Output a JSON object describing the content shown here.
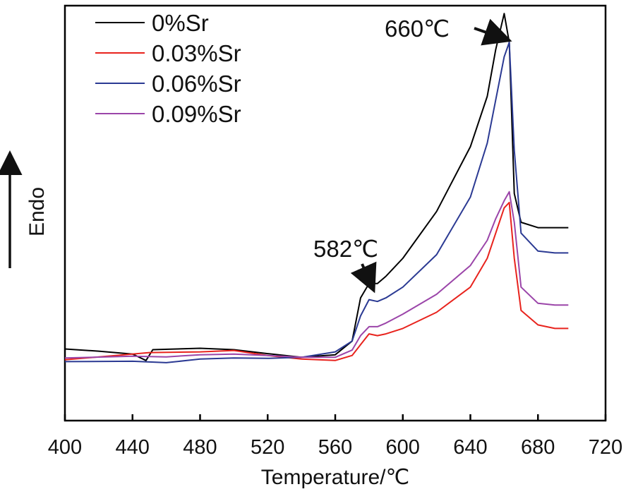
{
  "chart_data": {
    "type": "line",
    "title": "",
    "xlabel": "Temperature/℃",
    "ylabel": "Endo",
    "xlim": [
      400,
      720
    ],
    "ylim": [
      0,
      100
    ],
    "x_ticks": [
      "400",
      "440",
      "480",
      "520",
      "560",
      "600",
      "640",
      "680",
      "720"
    ],
    "y_ticks_shown": false,
    "legend_position": "top-left",
    "series": [
      {
        "name": "0%Sr",
        "color": "#000000",
        "x": [
          400,
          420,
          440,
          448,
          452,
          480,
          500,
          520,
          540,
          560,
          570,
          575,
          580,
          585,
          590,
          600,
          620,
          640,
          650,
          655,
          660,
          663,
          666,
          670,
          680,
          690,
          698
        ],
        "y": [
          14.8,
          14.2,
          13.4,
          11.6,
          14.6,
          15.0,
          14.6,
          13.5,
          12.5,
          13.2,
          17,
          29,
          33,
          33,
          35,
          40,
          53,
          71,
          85,
          98,
          108,
          100,
          58,
          50,
          48.5,
          48.5,
          48.5
        ]
      },
      {
        "name": "0.03%Sr",
        "color": "#e8231d",
        "x": [
          400,
          430,
          450,
          480,
          500,
          520,
          540,
          560,
          570,
          575,
          580,
          585,
          590,
          600,
          620,
          640,
          650,
          655,
          660,
          663,
          666,
          670,
          680,
          690,
          698
        ],
        "y": [
          11.8,
          13.0,
          13.8,
          14.0,
          14.4,
          13.0,
          12.0,
          11.6,
          13.0,
          16,
          19,
          18.5,
          19,
          20.5,
          25,
          32,
          40,
          47,
          54,
          55.5,
          40,
          25.5,
          21.5,
          20.5,
          20.5
        ]
      },
      {
        "name": "0.06%Sr",
        "color": "#2b3a93",
        "x": [
          400,
          440,
          460,
          480,
          500,
          520,
          540,
          560,
          570,
          575,
          580,
          585,
          590,
          600,
          620,
          640,
          650,
          655,
          660,
          663,
          666,
          670,
          680,
          690,
          698
        ],
        "y": [
          11.3,
          11.4,
          11.0,
          12.0,
          12.3,
          12.2,
          12.5,
          14.0,
          17,
          24,
          28.5,
          28,
          29,
          32,
          41,
          57,
          72,
          84,
          96,
          100,
          70,
          47,
          42,
          41.5,
          41.5
        ]
      },
      {
        "name": "0.09%Sr",
        "color": "#9b45a9",
        "x": [
          400,
          440,
          460,
          480,
          500,
          520,
          540,
          560,
          570,
          575,
          580,
          585,
          590,
          600,
          620,
          640,
          650,
          655,
          660,
          663,
          666,
          670,
          680,
          690,
          698
        ],
        "y": [
          12.3,
          12.8,
          12.6,
          13.2,
          13.4,
          13.0,
          12.5,
          12.5,
          14.5,
          18.5,
          21,
          21,
          22,
          24.5,
          30,
          38,
          45,
          51,
          56,
          58.5,
          50,
          32,
          27.5,
          27,
          27
        ]
      }
    ],
    "annotations": [
      {
        "text": "660℃",
        "target_x": 660,
        "target_y": 108
      },
      {
        "text": "582℃",
        "target_x": 582,
        "target_y": 33
      }
    ],
    "side_arrow_label": "Endo"
  }
}
